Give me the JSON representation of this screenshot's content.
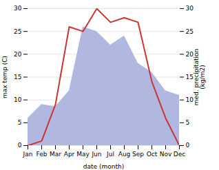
{
  "chart_data": {
    "type": "line",
    "categories": [
      "Jan",
      "Feb",
      "Mar",
      "Apr",
      "May",
      "Jun",
      "Jul",
      "Aug",
      "Sep",
      "Oct",
      "Nov",
      "Dec"
    ],
    "xlabel": "date (month)",
    "ylabel": "max temp (C)",
    "y2label": "med. precipitation\n(kg/m2)",
    "ylim": [
      0,
      30
    ],
    "yticks": [
      0,
      5,
      10,
      15,
      20,
      25,
      30
    ],
    "y2lim": [
      0,
      30
    ],
    "y2ticks": [
      0,
      5,
      10,
      15,
      20,
      25,
      30
    ],
    "grid": true,
    "series": [
      {
        "type": "area",
        "axis": "y2",
        "color": "#b0b8e0",
        "values": [
          6.0,
          9.0,
          8.5,
          12.0,
          26.0,
          25.0,
          22.0,
          24.0,
          18.0,
          16.0,
          12.0,
          11.0
        ]
      },
      {
        "type": "line",
        "color": "#cc3333",
        "values": [
          0.0,
          1.0,
          9.0,
          26.0,
          25.0,
          30.0,
          27.0,
          28.0,
          27.0,
          14.0,
          6.0,
          0.0
        ]
      }
    ]
  }
}
